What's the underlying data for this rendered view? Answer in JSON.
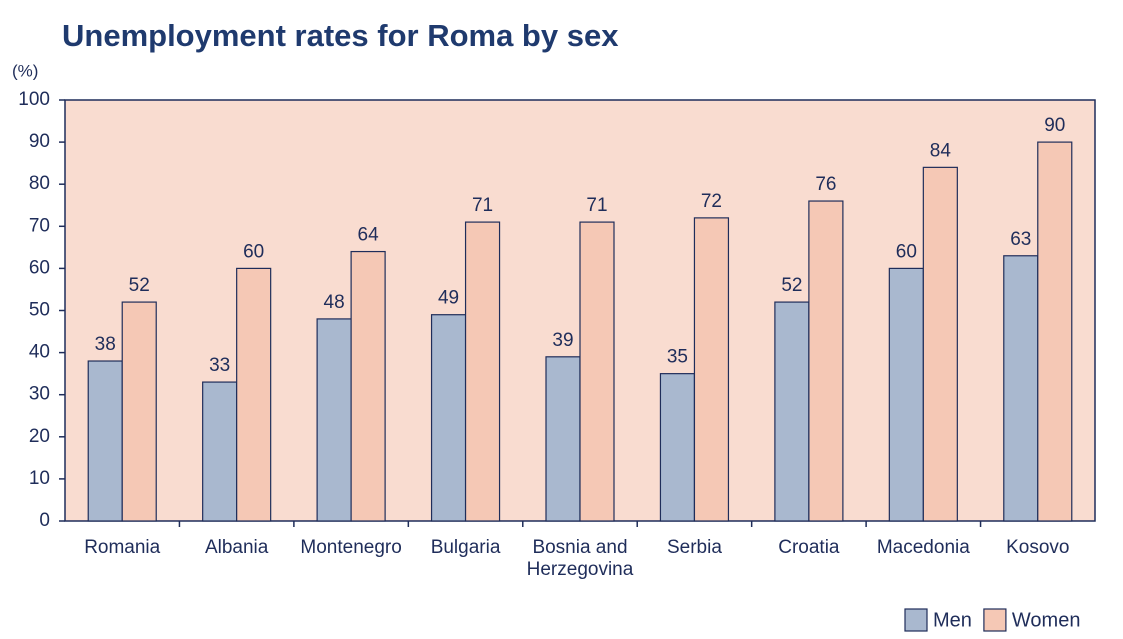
{
  "chart_data": {
    "type": "bar",
    "title": "Unemployment rates for Roma by sex",
    "y_label": "(%)",
    "categories": [
      "Romania",
      "Albania",
      "Montenegro",
      "Bulgaria",
      "Bosnia and Herzegovina",
      "Serbia",
      "Croatia",
      "Macedonia",
      "Kosovo"
    ],
    "series": [
      {
        "name": "Men",
        "color": "#a9b8cf",
        "values": [
          38,
          33,
          48,
          49,
          39,
          35,
          52,
          60,
          63
        ]
      },
      {
        "name": "Women",
        "color": "#f5c8b5",
        "values": [
          52,
          60,
          64,
          71,
          71,
          72,
          76,
          84,
          90
        ]
      }
    ],
    "ylim": [
      0,
      100
    ],
    "yticks": [
      0,
      10,
      20,
      30,
      40,
      50,
      60,
      70,
      80,
      90,
      100
    ],
    "plot_background": "#f9dcd0",
    "legend": "lower right"
  }
}
